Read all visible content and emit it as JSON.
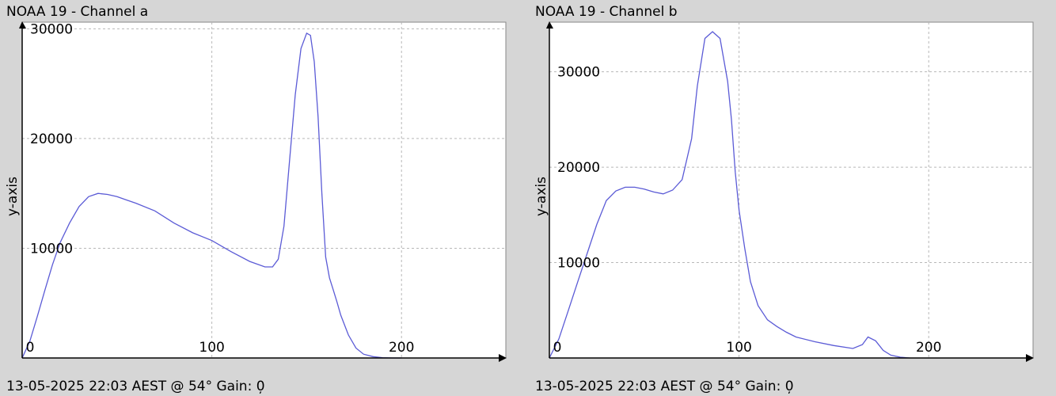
{
  "chart_data": [
    {
      "type": "line",
      "title": "NOAA 19 - Channel a",
      "xlabel": "",
      "ylabel": "y-axis",
      "footer": "13-05-2025 22:03 AEST @ 54° Gain: 0̦",
      "xlim": [
        0,
        255
      ],
      "ylim": [
        0,
        30600
      ],
      "xticks": [
        "0",
        "100",
        "200"
      ],
      "xtick_values": [
        0,
        100,
        200
      ],
      "yticks": [
        "10000",
        "20000",
        "30000"
      ],
      "ytick_values": [
        10000,
        20000,
        30000
      ],
      "grid": true,
      "line_color": "#5b5bd6",
      "series": [
        {
          "x": [
            0,
            4,
            8,
            12,
            16,
            20,
            25,
            30,
            35,
            40,
            45,
            50,
            55,
            60,
            70,
            80,
            90,
            100,
            110,
            120,
            128,
            132,
            135,
            138,
            141,
            144,
            147,
            150,
            152,
            154,
            156,
            158,
            160,
            162,
            164,
            166,
            168,
            172,
            176,
            180,
            185,
            190,
            195,
            200
          ],
          "y": [
            0,
            1500,
            3800,
            6200,
            8500,
            10500,
            12300,
            13800,
            14700,
            15000,
            14900,
            14700,
            14400,
            14100,
            13400,
            12300,
            11400,
            10700,
            9700,
            8800,
            8300,
            8300,
            9000,
            12000,
            18000,
            24000,
            28200,
            29600,
            29400,
            27000,
            22000,
            15000,
            9200,
            7300,
            6200,
            5100,
            3900,
            2100,
            900,
            350,
            120,
            30,
            0,
            0
          ]
        }
      ]
    },
    {
      "type": "line",
      "title": "NOAA 19 - Channel b",
      "xlabel": "",
      "ylabel": "y-axis",
      "footer": "13-05-2025 22:03 AEST @ 54° Gain: 0̦",
      "xlim": [
        0,
        255
      ],
      "ylim": [
        0,
        35200
      ],
      "xticks": [
        "0",
        "100",
        "200"
      ],
      "xtick_values": [
        0,
        100,
        200
      ],
      "yticks": [
        "10000",
        "20000",
        "30000"
      ],
      "ytick_values": [
        10000,
        20000,
        30000
      ],
      "grid": true,
      "line_color": "#5b5bd6",
      "series": [
        {
          "x": [
            0,
            5,
            10,
            15,
            20,
            25,
            30,
            35,
            40,
            45,
            50,
            55,
            60,
            65,
            70,
            75,
            78,
            82,
            86,
            90,
            94,
            96,
            98,
            100,
            103,
            106,
            110,
            115,
            120,
            125,
            130,
            140,
            150,
            160,
            165,
            168,
            172,
            176,
            180,
            185,
            190
          ],
          "y": [
            0,
            2000,
            5000,
            8000,
            11000,
            14000,
            16500,
            17500,
            17900,
            17900,
            17700,
            17400,
            17200,
            17600,
            18700,
            23000,
            28500,
            33500,
            34200,
            33500,
            29000,
            25000,
            19500,
            15500,
            11500,
            8000,
            5500,
            4000,
            3300,
            2700,
            2200,
            1700,
            1300,
            1000,
            1400,
            2200,
            1800,
            800,
            300,
            80,
            0
          ]
        }
      ]
    }
  ]
}
